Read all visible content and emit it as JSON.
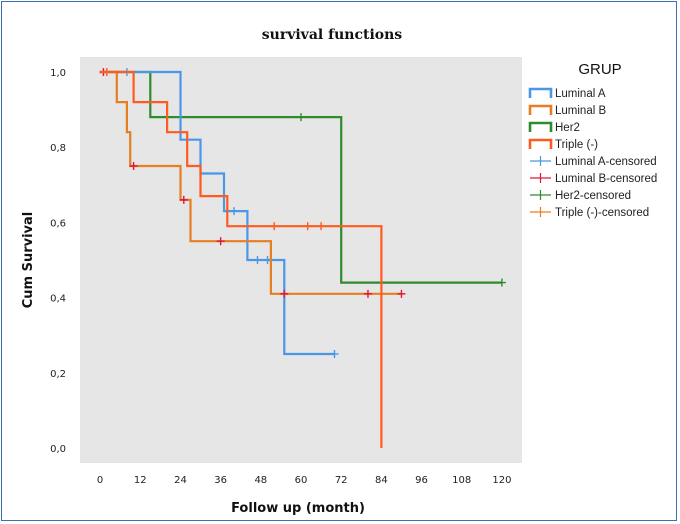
{
  "chart_data": {
    "type": "line",
    "title": "survival functions",
    "xlabel": "Follow up (month)",
    "ylabel": "Cum Survival",
    "xlim": [
      -6,
      126
    ],
    "ylim": [
      -0.04,
      1.04
    ],
    "xticks": [
      0,
      12,
      24,
      36,
      48,
      60,
      72,
      84,
      96,
      108,
      120
    ],
    "xtick_labels": [
      "0",
      "12",
      "24",
      "36",
      "48",
      "60",
      "72",
      "84",
      "96",
      "108",
      "120"
    ],
    "yticks": [
      0.0,
      0.2,
      0.4,
      0.6,
      0.8,
      1.0
    ],
    "ytick_labels": [
      "0,0",
      "0,2",
      "0,4",
      "0,6",
      "0,8",
      "1,0"
    ],
    "grid": false,
    "legend_title": "GRUP",
    "legend_position": "top-right",
    "colors": {
      "luminal_a": "#4a97e8",
      "luminal_b": "#e67e22",
      "her2": "#2e8b2e",
      "triple": "#ff5a1f",
      "censor_b": "#e0163a",
      "plot_bg": "#e6e6e6"
    },
    "series": [
      {
        "name": "Luminal A",
        "color": "#4a97e8",
        "points": [
          [
            0,
            1.0
          ],
          [
            24,
            1.0
          ],
          [
            24,
            0.82
          ],
          [
            30,
            0.82
          ],
          [
            30,
            0.73
          ],
          [
            37,
            0.73
          ],
          [
            37,
            0.63
          ],
          [
            44,
            0.63
          ],
          [
            44,
            0.5
          ],
          [
            55,
            0.5
          ],
          [
            55,
            0.25
          ],
          [
            70,
            0.25
          ]
        ],
        "censored": [
          [
            8,
            1.0
          ],
          [
            40,
            0.63
          ],
          [
            47,
            0.5
          ],
          [
            50,
            0.5
          ],
          [
            70,
            0.25
          ]
        ]
      },
      {
        "name": "Luminal B",
        "color": "#e67e22",
        "points": [
          [
            0,
            1.0
          ],
          [
            5,
            1.0
          ],
          [
            5,
            0.92
          ],
          [
            8,
            0.92
          ],
          [
            8,
            0.84
          ],
          [
            9,
            0.84
          ],
          [
            9,
            0.75
          ],
          [
            24,
            0.75
          ],
          [
            24,
            0.66
          ],
          [
            27,
            0.66
          ],
          [
            27,
            0.55
          ],
          [
            51,
            0.55
          ],
          [
            51,
            0.41
          ],
          [
            90,
            0.41
          ]
        ],
        "censored": [
          [
            1,
            1.0
          ],
          [
            10,
            0.75
          ],
          [
            25,
            0.66
          ],
          [
            36,
            0.55
          ],
          [
            55,
            0.41
          ],
          [
            80,
            0.41
          ],
          [
            90,
            0.41
          ]
        ]
      },
      {
        "name": "Her2",
        "color": "#2e8b2e",
        "points": [
          [
            0,
            1.0
          ],
          [
            15,
            1.0
          ],
          [
            15,
            0.88
          ],
          [
            72,
            0.88
          ],
          [
            72,
            0.44
          ],
          [
            120,
            0.44
          ]
        ],
        "censored": [
          [
            20,
            0.88
          ],
          [
            60,
            0.88
          ],
          [
            120,
            0.44
          ]
        ]
      },
      {
        "name": "Triple (-)",
        "color": "#ff5a1f",
        "points": [
          [
            0,
            1.0
          ],
          [
            10,
            1.0
          ],
          [
            10,
            0.92
          ],
          [
            20,
            0.92
          ],
          [
            20,
            0.84
          ],
          [
            26,
            0.84
          ],
          [
            26,
            0.75
          ],
          [
            30,
            0.75
          ],
          [
            30,
            0.67
          ],
          [
            38,
            0.67
          ],
          [
            38,
            0.59
          ],
          [
            84,
            0.59
          ],
          [
            84,
            0.0
          ]
        ],
        "censored": [
          [
            2,
            1.0
          ],
          [
            52,
            0.59
          ],
          [
            62,
            0.59
          ],
          [
            66,
            0.59
          ]
        ]
      }
    ],
    "legend": [
      {
        "label": "Luminal A",
        "kind": "line",
        "color": "#4a97e8"
      },
      {
        "label": "Luminal B",
        "kind": "line",
        "color": "#e67e22"
      },
      {
        "label": "Her2",
        "kind": "line",
        "color": "#2e8b2e"
      },
      {
        "label": "Triple (-)",
        "kind": "line",
        "color": "#ff5a1f"
      },
      {
        "label": "Luminal A-censored",
        "kind": "censor",
        "color": "#4a97e8"
      },
      {
        "label": "Luminal B-censored",
        "kind": "censor",
        "color": "#e0163a"
      },
      {
        "label": "Her2-censored",
        "kind": "censor",
        "color": "#2e8b2e"
      },
      {
        "label": "Triple (-)-censored",
        "kind": "censor",
        "color": "#e67e22"
      }
    ]
  }
}
